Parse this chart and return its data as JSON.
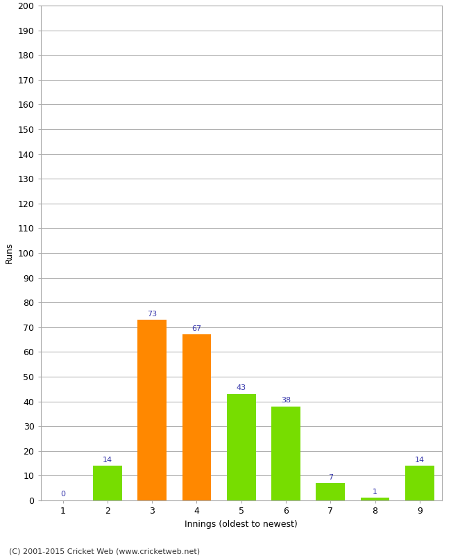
{
  "categories": [
    1,
    2,
    3,
    4,
    5,
    6,
    7,
    8,
    9
  ],
  "values": [
    0,
    14,
    73,
    67,
    43,
    38,
    7,
    1,
    14
  ],
  "bar_colors": [
    "#77dd00",
    "#77dd00",
    "#ff8800",
    "#ff8800",
    "#77dd00",
    "#77dd00",
    "#77dd00",
    "#77dd00",
    "#77dd00"
  ],
  "ylabel": "Runs",
  "xlabel": "Innings (oldest to newest)",
  "ylim": [
    0,
    200
  ],
  "yticks": [
    0,
    10,
    20,
    30,
    40,
    50,
    60,
    70,
    80,
    90,
    100,
    110,
    120,
    130,
    140,
    150,
    160,
    170,
    180,
    190,
    200
  ],
  "label_color": "#3333aa",
  "label_fontsize": 8,
  "footer": "(C) 2001-2015 Cricket Web (www.cricketweb.net)",
  "background_color": "#ffffff",
  "grid_color": "#aaaaaa",
  "border_color": "#aaaaaa",
  "spine_color": "#aaaaaa"
}
